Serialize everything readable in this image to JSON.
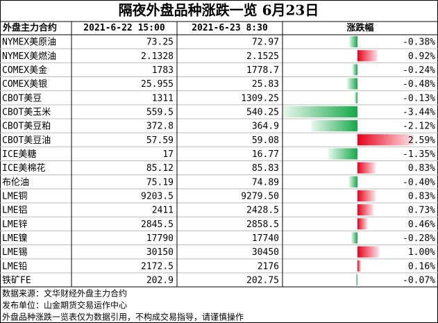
{
  "title": "隔夜外盘品种涨跌一览 6月23日",
  "table": {
    "header": [
      "外盘主力合约",
      "2021-6-22 15:00",
      "2021-6-23 8:30",
      "涨跌幅"
    ],
    "rows": [
      {
        "name": "NYMEX美原油",
        "prev": "73.25",
        "curr": "72.97",
        "change": {
          "value": -0.38,
          "label": "-0.38%"
        }
      },
      {
        "name": "NYMEX美燃油",
        "prev": "2.1328",
        "curr": "2.1525",
        "change": {
          "value": 0.92,
          "label": "0.92%"
        }
      },
      {
        "name": "COMEX美金",
        "prev": "1783",
        "curr": "1778.7",
        "change": {
          "value": -0.24,
          "label": "-0.24%"
        }
      },
      {
        "name": "COMEX美银",
        "prev": "25.955",
        "curr": "25.83",
        "change": {
          "value": -0.48,
          "label": "-0.48%"
        }
      },
      {
        "name": "CBOT美豆",
        "prev": "1311",
        "curr": "1309.25",
        "change": {
          "value": -0.13,
          "label": "-0.13%"
        }
      },
      {
        "name": "CBOT美玉米",
        "prev": "559.5",
        "curr": "540.25",
        "change": {
          "value": -3.44,
          "label": "-3.44%"
        }
      },
      {
        "name": "CBOT美豆粕",
        "prev": "372.8",
        "curr": "364.9",
        "change": {
          "value": -2.12,
          "label": "-2.12%"
        }
      },
      {
        "name": "CBOT美豆油",
        "prev": "57.59",
        "curr": "59.08",
        "change": {
          "value": 2.59,
          "label": "2.59%"
        }
      },
      {
        "name": "ICE美糖",
        "prev": "17",
        "curr": "16.77",
        "change": {
          "value": -1.35,
          "label": "-1.35%"
        }
      },
      {
        "name": "ICE美棉花",
        "prev": "85.12",
        "curr": "85.83",
        "change": {
          "value": 0.83,
          "label": "0.83%"
        }
      },
      {
        "name": "布伦油",
        "prev": "75.19",
        "curr": "74.89",
        "change": {
          "value": -0.4,
          "label": "-0.40%"
        }
      },
      {
        "name": "LME铜",
        "prev": "9203.5",
        "curr": "9279.50",
        "change": {
          "value": 0.83,
          "label": "0.83%"
        }
      },
      {
        "name": "LME铝",
        "prev": "2411",
        "curr": "2428.5",
        "change": {
          "value": 0.73,
          "label": "0.73%"
        }
      },
      {
        "name": "LME锌",
        "prev": "2845.5",
        "curr": "2858.5",
        "change": {
          "value": 0.46,
          "label": "0.46%"
        }
      },
      {
        "name": "LME镍",
        "prev": "17790",
        "curr": "17740",
        "change": {
          "value": -0.28,
          "label": "-0.28%"
        }
      },
      {
        "name": "LME锡",
        "prev": "30150",
        "curr": "30450",
        "change": {
          "value": 1.0,
          "label": "1.00%"
        }
      },
      {
        "name": "LME铅",
        "prev": "2172.5",
        "curr": "2176",
        "change": {
          "value": 0.16,
          "label": "0.16%"
        }
      },
      {
        "name": "铁矿FE",
        "prev": "202.9",
        "curr": "202.75",
        "change": {
          "value": -0.07,
          "label": "-0.07%"
        }
      }
    ]
  },
  "footer": [
    "数据来源：文华财经外盘主力合约",
    "发布单位：山金期货交易运作中心",
    "外盘品种涨跌一览表仅为数据引用，不构成交易指导，请谨慎操作"
  ]
}
